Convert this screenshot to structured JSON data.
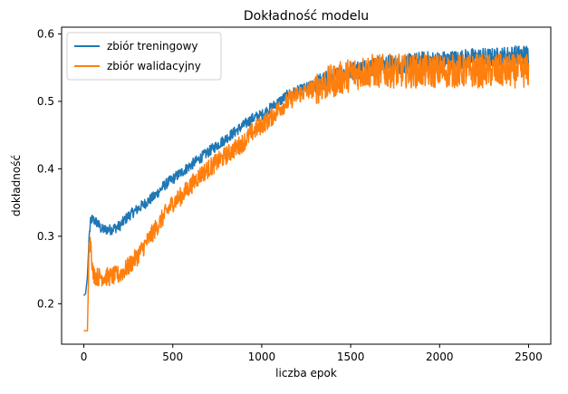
{
  "chart_data": {
    "type": "line",
    "title": "Dokładność modelu",
    "xlabel": "liczba epok",
    "ylabel": "dokładność",
    "xlim": [
      -125,
      2625
    ],
    "ylim": [
      0.14,
      0.61
    ],
    "x_ticks": [
      0,
      500,
      1000,
      1500,
      2000,
      2500
    ],
    "y_ticks": [
      0.2,
      0.3,
      0.4,
      0.5,
      0.6
    ],
    "x_tick_labels": [
      "0",
      "500",
      "1000",
      "1500",
      "2000",
      "2500"
    ],
    "y_tick_labels": [
      "0.2",
      "0.3",
      "0.4",
      "0.5",
      "0.6"
    ],
    "legend_position": "top-left",
    "grid": false,
    "series": [
      {
        "name": "zbiór treningowy",
        "color": "#1f77b4",
        "x": [
          0,
          10,
          20,
          30,
          40,
          50,
          75,
          100,
          150,
          200,
          250,
          300,
          350,
          400,
          450,
          500,
          550,
          600,
          650,
          700,
          750,
          800,
          850,
          900,
          950,
          1000,
          1050,
          1100,
          1150,
          1200,
          1300,
          1400,
          1500,
          1600,
          1700,
          1800,
          1900,
          2000,
          2100,
          2200,
          2300,
          2400,
          2500
        ],
        "y": [
          0.212,
          0.215,
          0.24,
          0.3,
          0.325,
          0.325,
          0.32,
          0.31,
          0.31,
          0.315,
          0.33,
          0.34,
          0.35,
          0.36,
          0.375,
          0.385,
          0.395,
          0.405,
          0.415,
          0.425,
          0.435,
          0.445,
          0.455,
          0.465,
          0.475,
          0.48,
          0.49,
          0.5,
          0.51,
          0.515,
          0.525,
          0.535,
          0.545,
          0.55,
          0.555,
          0.555,
          0.56,
          0.56,
          0.562,
          0.565,
          0.565,
          0.568,
          0.57
        ],
        "noise": 0.008
      },
      {
        "name": "zbiór walidacyjny",
        "color": "#ff7f0e",
        "x": [
          0,
          10,
          20,
          30,
          40,
          50,
          75,
          100,
          150,
          200,
          250,
          300,
          350,
          400,
          450,
          500,
          550,
          600,
          650,
          700,
          750,
          800,
          850,
          900,
          950,
          1000,
          1050,
          1100,
          1150,
          1200,
          1300,
          1400,
          1500,
          1600,
          1700,
          1800,
          1900,
          2000,
          2100,
          2200,
          2300,
          2400,
          2500
        ],
        "y": [
          0.16,
          0.16,
          0.16,
          0.29,
          0.29,
          0.245,
          0.24,
          0.24,
          0.24,
          0.243,
          0.255,
          0.27,
          0.29,
          0.31,
          0.33,
          0.35,
          0.36,
          0.375,
          0.39,
          0.4,
          0.41,
          0.42,
          0.43,
          0.44,
          0.455,
          0.465,
          0.475,
          0.49,
          0.5,
          0.51,
          0.52,
          0.53,
          0.54,
          0.545,
          0.545,
          0.545,
          0.545,
          0.545,
          0.545,
          0.545,
          0.545,
          0.545,
          0.545
        ],
        "noise": 0.014
      }
    ]
  }
}
